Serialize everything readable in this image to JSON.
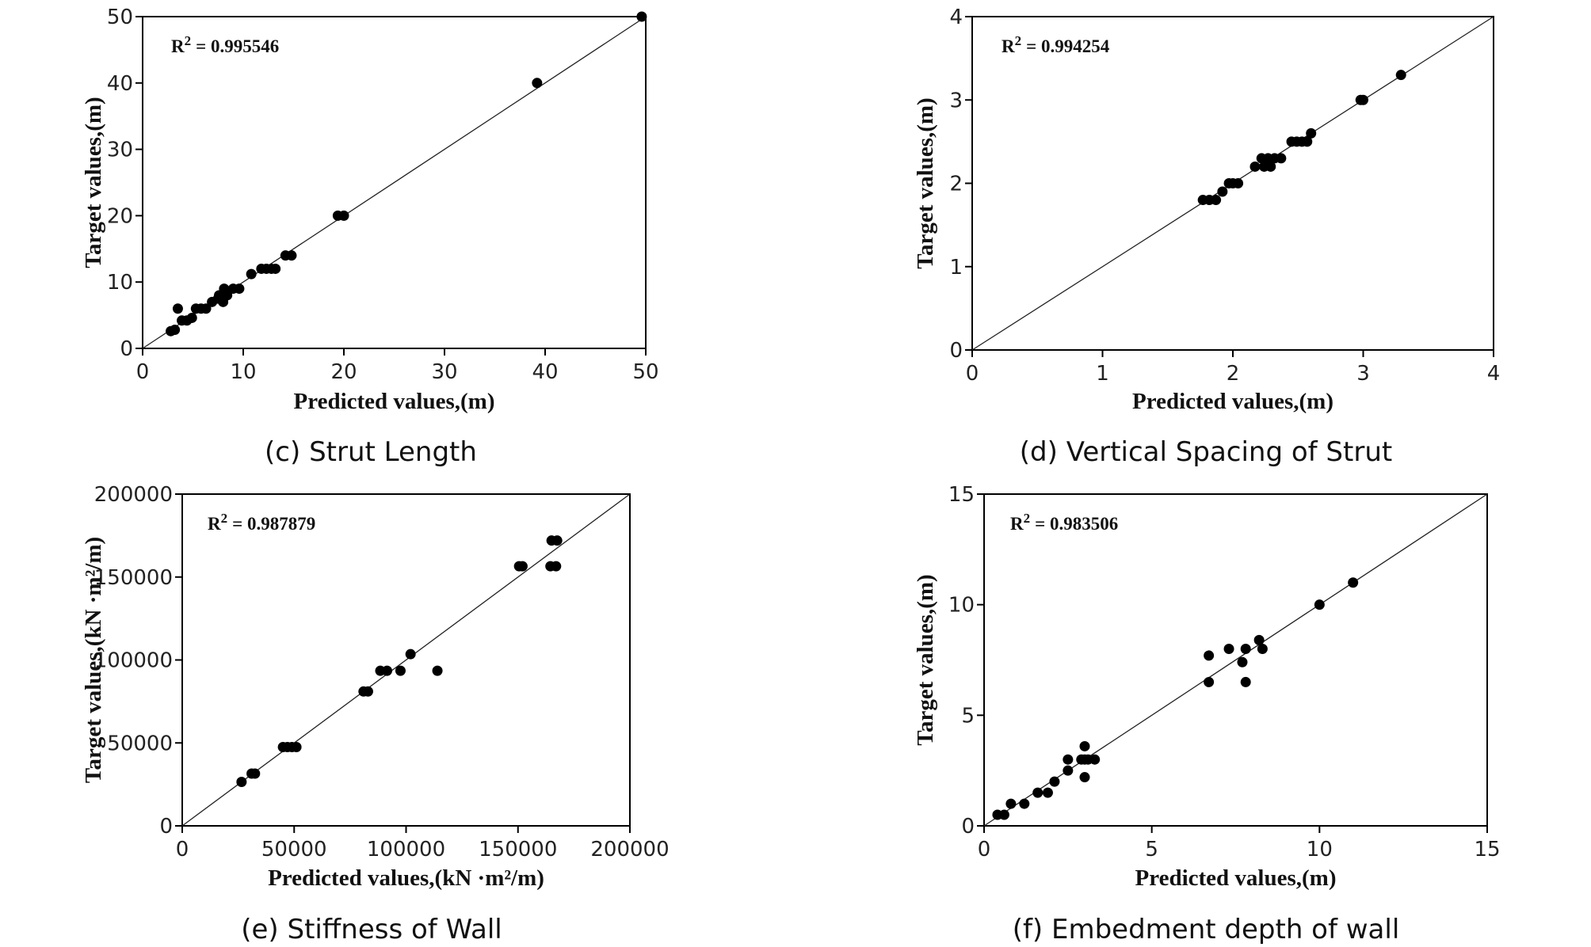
{
  "colors": {
    "points": "#000000",
    "frame": "#000000",
    "background": "#ffffff"
  },
  "chart_data": [
    {
      "id": "c",
      "type": "scatter",
      "caption": "(c) Strut Length",
      "xlabel": "Predicted values,(m)",
      "ylabel": "Target values,(m)",
      "r2_label": "R",
      "r2_sup": "2",
      "r2_value": "= 0.995546",
      "xlim": [
        0,
        50
      ],
      "ylim": [
        0,
        50
      ],
      "xticks": [
        0,
        10,
        20,
        30,
        40,
        50
      ],
      "yticks": [
        0,
        10,
        20,
        30,
        40,
        50
      ],
      "xtick_labels": [
        "0",
        "10",
        "20",
        "30",
        "40",
        "50"
      ],
      "ytick_labels": [
        "0",
        "10",
        "20",
        "30",
        "40",
        "50"
      ],
      "reference_line": "y = x",
      "points": [
        [
          2.8,
          2.6
        ],
        [
          3.2,
          2.8
        ],
        [
          3.5,
          6
        ],
        [
          3.9,
          4.2
        ],
        [
          4.4,
          4.2
        ],
        [
          4.9,
          4.6
        ],
        [
          5.3,
          6
        ],
        [
          5.8,
          6
        ],
        [
          6.3,
          6
        ],
        [
          6.9,
          7
        ],
        [
          7.5,
          7.5
        ],
        [
          7.6,
          8
        ],
        [
          8,
          7
        ],
        [
          8.1,
          9
        ],
        [
          8.4,
          8
        ],
        [
          9,
          9
        ],
        [
          9.6,
          9
        ],
        [
          10.8,
          11.2
        ],
        [
          11.8,
          12
        ],
        [
          12.3,
          12
        ],
        [
          12.8,
          12
        ],
        [
          13.2,
          12
        ],
        [
          14.2,
          14
        ],
        [
          14.8,
          14
        ],
        [
          19.4,
          20
        ],
        [
          20,
          20
        ],
        [
          39.2,
          40
        ],
        [
          49.6,
          50
        ]
      ]
    },
    {
      "id": "d",
      "type": "scatter",
      "caption": "(d) Vertical Spacing of Strut",
      "xlabel": "Predicted values,(m)",
      "ylabel": "Target values,(m)",
      "r2_label": "R",
      "r2_sup": "2",
      "r2_value": "= 0.994254",
      "xlim": [
        0,
        4
      ],
      "ylim": [
        0,
        4
      ],
      "xticks": [
        0,
        1,
        2,
        3,
        4
      ],
      "yticks": [
        0,
        1,
        2,
        3,
        4
      ],
      "xtick_labels": [
        "0",
        "1",
        "2",
        "3",
        "4"
      ],
      "ytick_labels": [
        "0",
        "1",
        "2",
        "3",
        "4"
      ],
      "reference_line": "y = x",
      "points": [
        [
          1.77,
          1.8
        ],
        [
          1.82,
          1.8
        ],
        [
          1.87,
          1.8
        ],
        [
          1.92,
          1.9
        ],
        [
          1.97,
          2
        ],
        [
          2.0,
          2
        ],
        [
          2.04,
          2
        ],
        [
          2.17,
          2.2
        ],
        [
          2.22,
          2.3
        ],
        [
          2.24,
          2.2
        ],
        [
          2.27,
          2.3
        ],
        [
          2.29,
          2.2
        ],
        [
          2.32,
          2.3
        ],
        [
          2.37,
          2.3
        ],
        [
          2.45,
          2.5
        ],
        [
          2.49,
          2.5
        ],
        [
          2.53,
          2.5
        ],
        [
          2.57,
          2.5
        ],
        [
          2.6,
          2.6
        ],
        [
          2.98,
          3
        ],
        [
          3.0,
          3
        ],
        [
          3.29,
          3.3
        ]
      ]
    },
    {
      "id": "e",
      "type": "scatter",
      "caption": "(e) Stiffness of Wall",
      "xlabel": "Predicted values,(kN ·m²/m)",
      "ylabel": "Target values,(kN ·m²/m)",
      "r2_label": "R",
      "r2_sup": "2",
      "r2_value": "= 0.987879",
      "xlim": [
        0,
        200000
      ],
      "ylim": [
        0,
        200000
      ],
      "xticks": [
        0,
        50000,
        100000,
        150000,
        200000
      ],
      "yticks": [
        0,
        50000,
        100000,
        150000,
        200000
      ],
      "xtick_labels": [
        "0",
        "50000",
        "100000",
        "150000",
        "200000"
      ],
      "ytick_labels": [
        "0",
        "50000",
        "100000",
        "150000",
        "200000"
      ],
      "reference_line": "y = x",
      "points": [
        [
          26500,
          26500
        ],
        [
          31000,
          31500
        ],
        [
          32500,
          31500
        ],
        [
          45000,
          47500
        ],
        [
          47000,
          47500
        ],
        [
          49000,
          47500
        ],
        [
          51000,
          47500
        ],
        [
          81000,
          81000
        ],
        [
          83000,
          81000
        ],
        [
          88500,
          93500
        ],
        [
          91500,
          93500
        ],
        [
          97500,
          93500
        ],
        [
          102000,
          103500
        ],
        [
          114000,
          93500
        ],
        [
          150500,
          156500
        ],
        [
          152000,
          156500
        ],
        [
          164500,
          156500
        ],
        [
          167000,
          156500
        ],
        [
          165000,
          172000
        ],
        [
          167500,
          172000
        ]
      ]
    },
    {
      "id": "f",
      "type": "scatter",
      "caption": "(f) Embedment depth of wall",
      "xlabel": "Predicted values,(m)",
      "ylabel": "Target values,(m)",
      "r2_label": "R",
      "r2_sup": "2",
      "r2_value": "= 0.983506",
      "xlim": [
        0,
        15
      ],
      "ylim": [
        0,
        15
      ],
      "xticks": [
        0,
        5,
        10,
        15
      ],
      "yticks": [
        0,
        5,
        10,
        15
      ],
      "xtick_labels": [
        "0",
        "5",
        "10",
        "15"
      ],
      "ytick_labels": [
        "0",
        "5",
        "10",
        "15"
      ],
      "reference_line": "y = x",
      "points": [
        [
          0.4,
          0.5
        ],
        [
          0.6,
          0.5
        ],
        [
          0.8,
          1
        ],
        [
          1.2,
          1
        ],
        [
          1.6,
          1.5
        ],
        [
          1.9,
          1.5
        ],
        [
          2.1,
          2
        ],
        [
          2.5,
          3
        ],
        [
          2.5,
          2.5
        ],
        [
          2.9,
          3
        ],
        [
          3.0,
          3
        ],
        [
          3.0,
          3.6
        ],
        [
          3.0,
          2.2
        ],
        [
          3.1,
          3
        ],
        [
          3.3,
          3
        ],
        [
          6.7,
          7.7
        ],
        [
          6.7,
          6.5
        ],
        [
          7.3,
          8
        ],
        [
          7.7,
          7.4
        ],
        [
          7.8,
          6.5
        ],
        [
          7.8,
          8
        ],
        [
          8.2,
          8.4
        ],
        [
          8.3,
          8
        ],
        [
          10,
          10
        ],
        [
          11,
          11
        ]
      ]
    }
  ]
}
